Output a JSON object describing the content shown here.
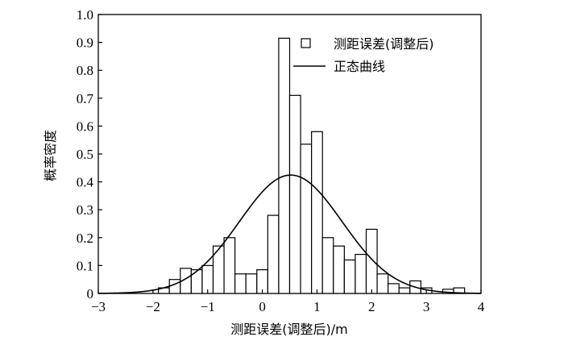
{
  "chart_data": {
    "type": "bar",
    "xlabel": "测距误差(调整后)/m",
    "ylabel": "概率密度",
    "xlim": [
      -3,
      4
    ],
    "ylim": [
      0,
      1.0
    ],
    "xticks": [
      "−3",
      "−2",
      "−1",
      "0",
      "1",
      "2",
      "3",
      "4"
    ],
    "yticks": [
      "0",
      "0.1",
      "0.2",
      "0.3",
      "0.4",
      "0.5",
      "0.6",
      "0.7",
      "0.8",
      "0.9",
      "1.0"
    ],
    "bin_width": 0.2,
    "bins": [
      {
        "x0": -1.9,
        "value": 0.02
      },
      {
        "x0": -1.7,
        "value": 0.05
      },
      {
        "x0": -1.5,
        "value": 0.09
      },
      {
        "x0": -1.3,
        "value": 0.085
      },
      {
        "x0": -1.1,
        "value": 0.1
      },
      {
        "x0": -0.9,
        "value": 0.17
      },
      {
        "x0": -0.7,
        "value": 0.2
      },
      {
        "x0": -0.5,
        "value": 0.07
      },
      {
        "x0": -0.3,
        "value": 0.07
      },
      {
        "x0": -0.1,
        "value": 0.085
      },
      {
        "x0": 0.1,
        "value": 0.28
      },
      {
        "x0": 0.3,
        "value": 0.915
      },
      {
        "x0": 0.5,
        "value": 0.71
      },
      {
        "x0": 0.7,
        "value": 0.535
      },
      {
        "x0": 0.9,
        "value": 0.58
      },
      {
        "x0": 1.1,
        "value": 0.2
      },
      {
        "x0": 1.3,
        "value": 0.17
      },
      {
        "x0": 1.5,
        "value": 0.12
      },
      {
        "x0": 1.7,
        "value": 0.14
      },
      {
        "x0": 1.9,
        "value": 0.23
      },
      {
        "x0": 2.1,
        "value": 0.07
      },
      {
        "x0": 2.3,
        "value": 0.035
      },
      {
        "x0": 2.5,
        "value": 0.02
      },
      {
        "x0": 2.7,
        "value": 0.045
      },
      {
        "x0": 2.9,
        "value": 0.02
      },
      {
        "x0": 3.1,
        "value": 0.0
      },
      {
        "x0": 3.3,
        "value": 0.015
      },
      {
        "x0": 3.5,
        "value": 0.02
      }
    ],
    "normal_curve": {
      "mean": 0.52,
      "std": 0.94
    },
    "legend": {
      "position": "top-right",
      "entries": [
        "测距误差(调整后)",
        "正态曲线"
      ]
    },
    "colors": {
      "stroke": "#000000",
      "bar_fill": "#ffffff"
    }
  }
}
